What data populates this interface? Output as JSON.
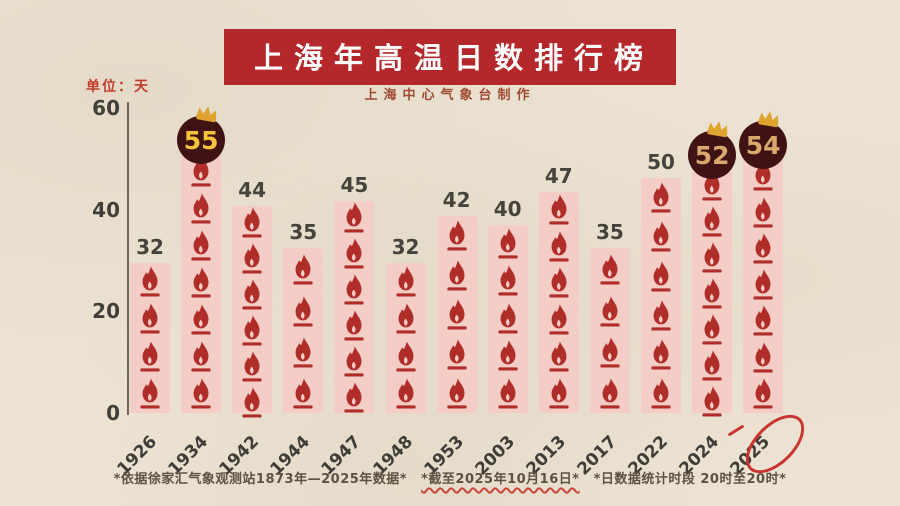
{
  "title": "上海年高温日数排行榜",
  "subtitle": "上海中心气象台制作",
  "unit_label": "单位：天",
  "footnote": {
    "part1": "*依据徐家汇气象观测站1873年—2025年数据*",
    "part2": "*截至2025年10月16日*",
    "part3": "*日数据统计时段 20时至20时*"
  },
  "colors": {
    "background": "#ece3d4",
    "banner": "#b4282b",
    "banner_text": "#ffffff",
    "subtitle_text": "#9e4a32",
    "unit_text": "#c23b2a",
    "bar_fill": "#f3cdc6",
    "flame": "#b02e2a",
    "value_text": "#45443c",
    "axis_text": "#403f39",
    "badge_bg": "#3f1314",
    "badge_text_gold": "#f5c43c",
    "badge_text_tan": "#d8a86d",
    "crown": "#dfa32f",
    "highlight_red": "#c9342e",
    "footnote_text": "#5f5142"
  },
  "chart_data": {
    "type": "bar",
    "title": "上海年高温日数排行榜",
    "subtitle": "上海中心气象台制作",
    "unit": "天",
    "xlabel": "",
    "ylabel": "单位：天",
    "categories": [
      "1926",
      "1934",
      "1942",
      "1944",
      "1947",
      "1948",
      "1953",
      "2003",
      "2013",
      "2017",
      "2022",
      "2024",
      "2025"
    ],
    "values": [
      32,
      55,
      44,
      35,
      45,
      32,
      42,
      40,
      47,
      35,
      50,
      52,
      54
    ],
    "flame_counts": [
      4,
      7,
      6,
      4,
      6,
      4,
      5,
      5,
      6,
      4,
      6,
      7,
      7
    ],
    "ylim": [
      0,
      60
    ],
    "y_ticks": [
      0,
      20,
      40,
      60
    ],
    "grid": false,
    "legend": null,
    "badges": [
      {
        "index": 1,
        "label": "55",
        "text_color": "#f5c43c",
        "crown": true
      },
      {
        "index": 11,
        "label": "52",
        "text_color": "#d8a86d",
        "crown": true
      },
      {
        "index": 12,
        "label": "54",
        "text_color": "#d8a86d",
        "crown": true
      }
    ],
    "circled_category": "2025"
  }
}
